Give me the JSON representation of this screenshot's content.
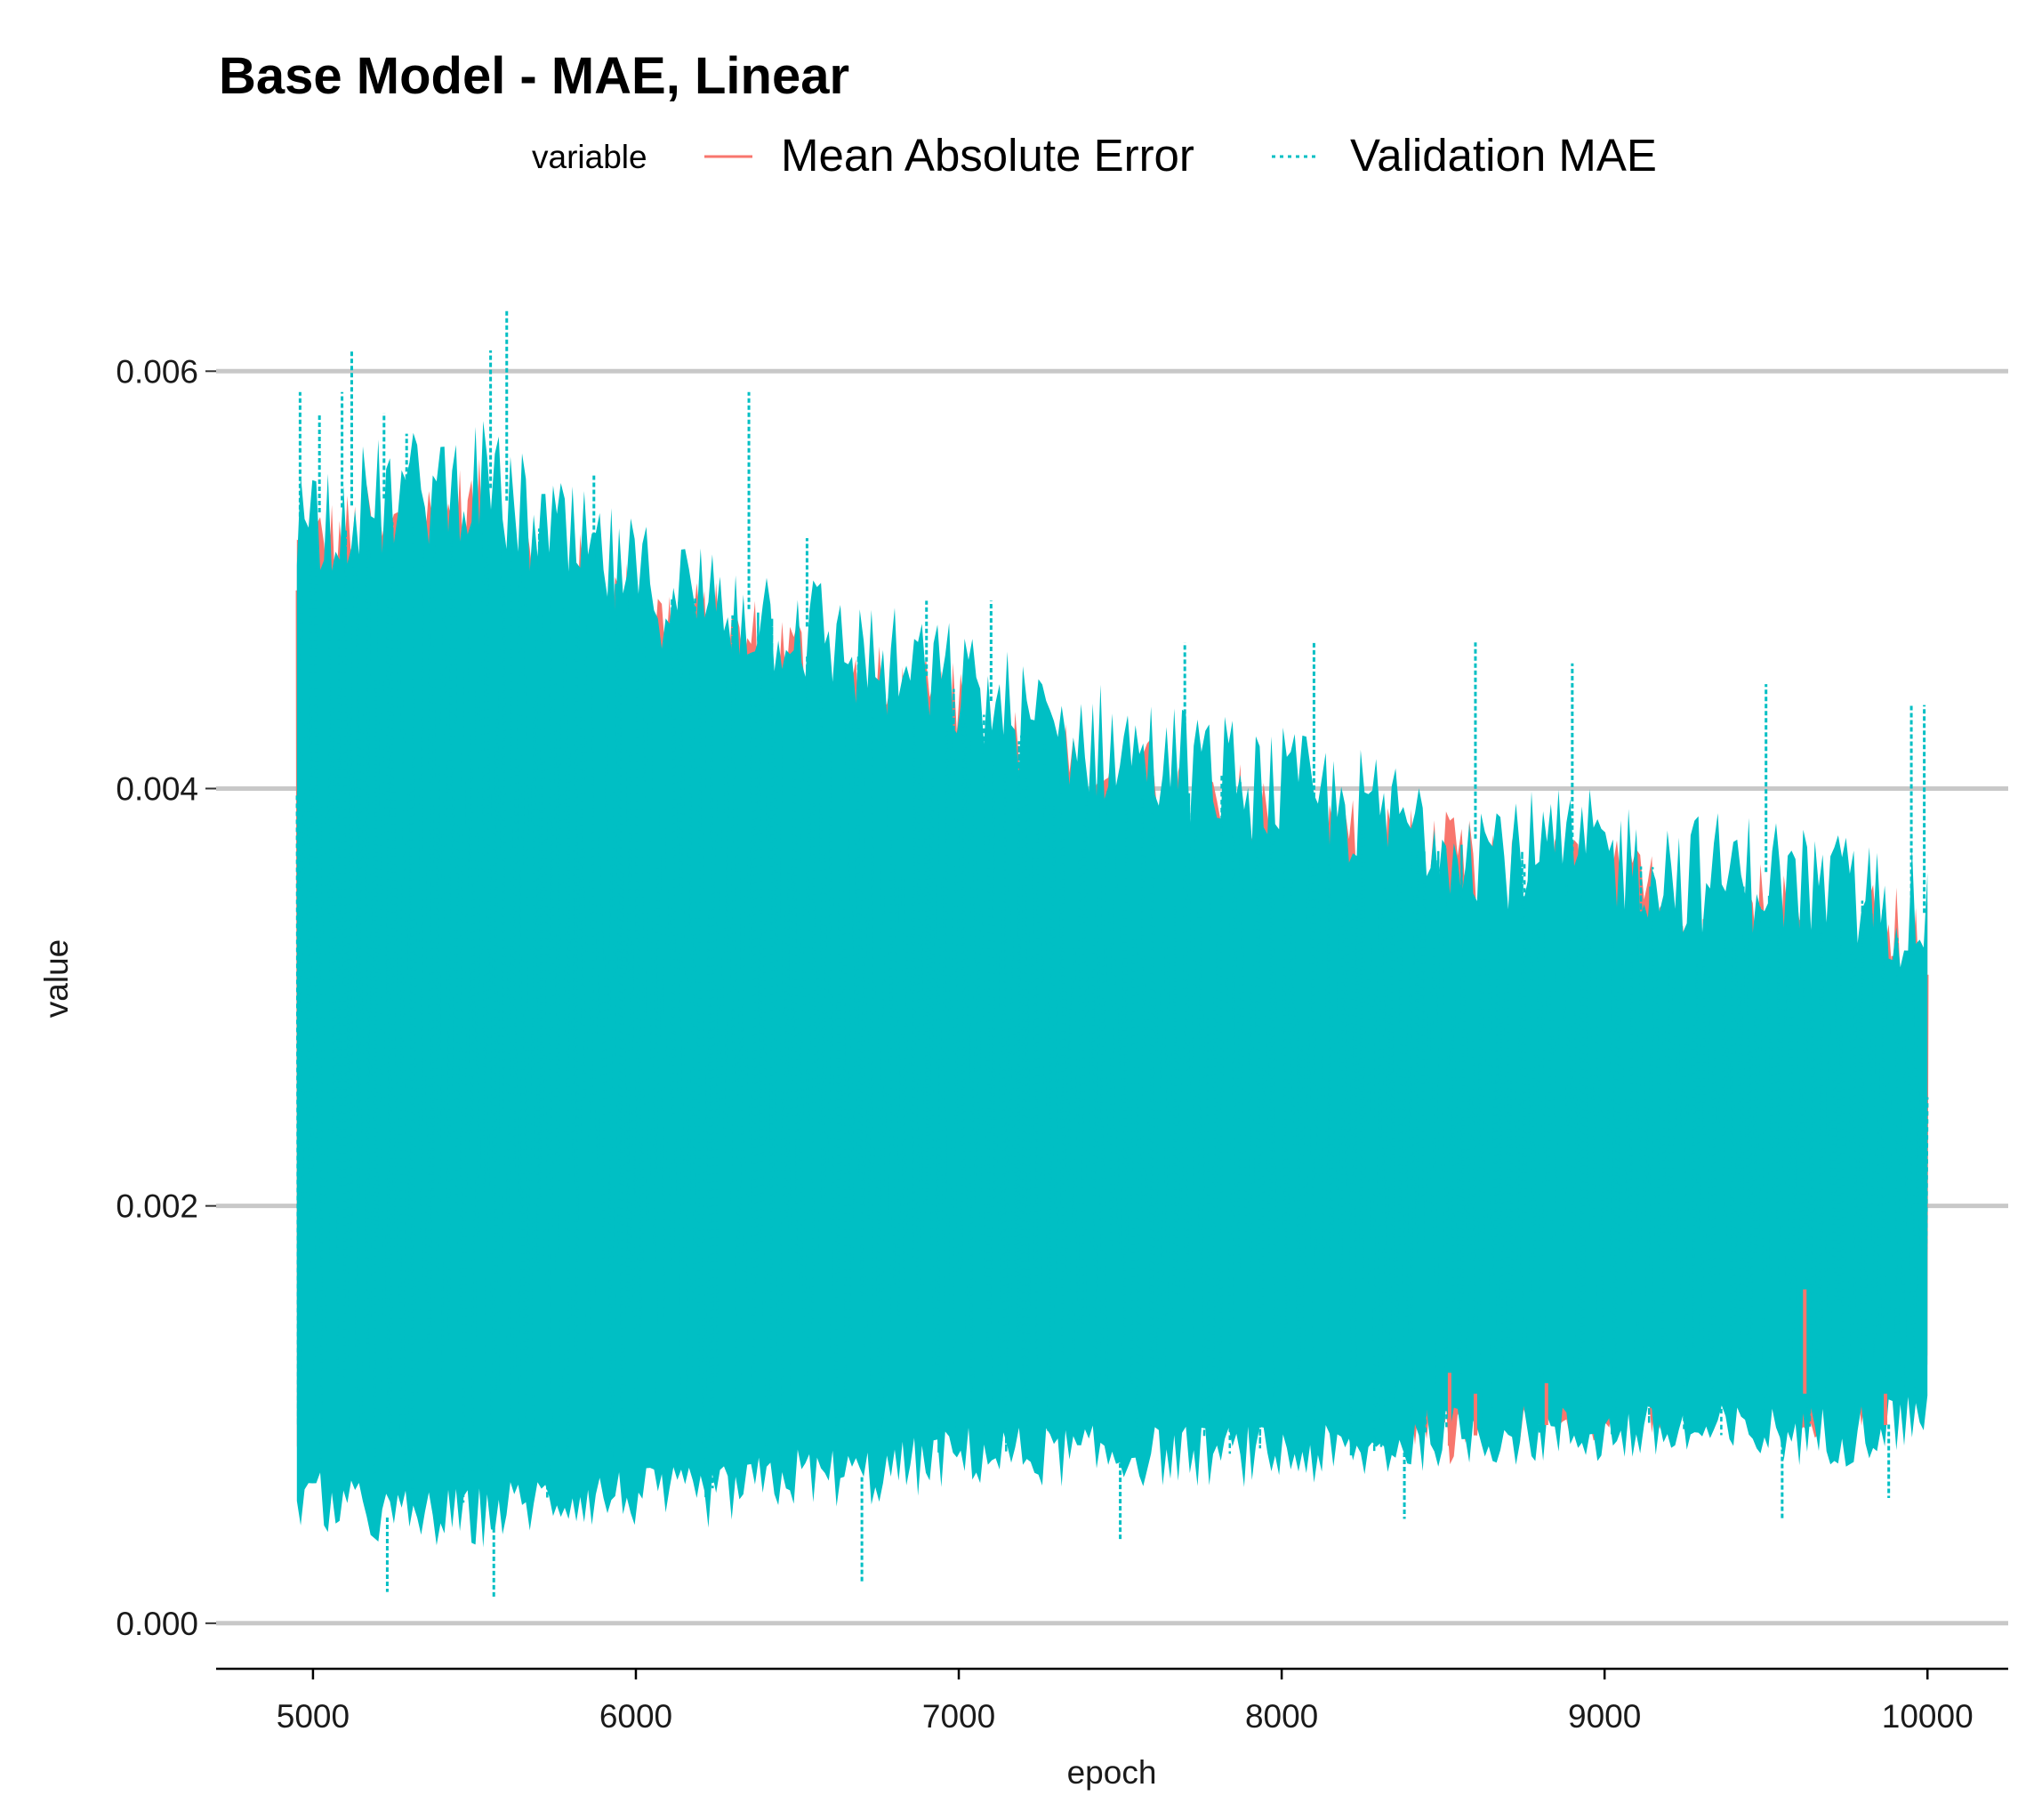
{
  "chart_data": {
    "type": "line",
    "title": "Base Model - MAE, Linear",
    "xlabel": "epoch",
    "ylabel": "value",
    "xlim": [
      4700,
      10250
    ],
    "ylim": [
      -0.00015,
      0.0065
    ],
    "x_ticks": [
      5000,
      6000,
      7000,
      8000,
      9000,
      10000
    ],
    "x_tick_labels": [
      "5000",
      "6000",
      "7000",
      "8000",
      "9000",
      "10000"
    ],
    "y_ticks": [
      0.0,
      0.002,
      0.004,
      0.006
    ],
    "y_tick_labels": [
      "0.000",
      "0.002",
      "0.004",
      "0.006"
    ],
    "grid": "horizontal major",
    "legend": {
      "title": "variable",
      "position": "top",
      "entries": [
        {
          "label": "Mean Absolute Error",
          "linetype": "solid",
          "color": "#F8766D"
        },
        {
          "label": "Validation MAE",
          "linetype": "dashed",
          "color": "#00BFC4"
        }
      ]
    },
    "series": [
      {
        "name": "Mean Absolute Error",
        "color": "#F8766D",
        "linetype": "solid",
        "x": [
          4950,
          5250,
          5500,
          5750,
          6000,
          6250,
          6500,
          6750,
          7000,
          7250,
          7500,
          7750,
          8000,
          8250,
          8500,
          8750,
          9000,
          9250,
          9500,
          9750,
          10000
        ],
        "upper": [
          0.0051,
          0.0052,
          0.0053,
          0.005,
          0.0048,
          0.0047,
          0.0046,
          0.0044,
          0.0043,
          0.0041,
          0.004,
          0.0039,
          0.0038,
          0.0037,
          0.0036,
          0.0035,
          0.0035,
          0.0034,
          0.0034,
          0.0033,
          0.0032
        ],
        "lower": [
          0.0009,
          0.0008,
          0.0008,
          0.0009,
          0.0009,
          0.001,
          0.001,
          0.0011,
          0.0011,
          0.0011,
          0.0012,
          0.0011,
          0.0011,
          0.0011,
          0.0009,
          0.001,
          0.001,
          0.0011,
          0.0011,
          0.001,
          0.0012
        ]
      },
      {
        "name": "Validation MAE",
        "color": "#00BFC4",
        "linetype": "dashed",
        "x": [
          4950,
          5250,
          5500,
          5750,
          6000,
          6250,
          6500,
          6750,
          7000,
          7250,
          7500,
          7750,
          8000,
          8250,
          8500,
          8750,
          9000,
          9250,
          9500,
          9750,
          10000
        ],
        "upper": [
          0.0053,
          0.0054,
          0.0055,
          0.0052,
          0.005,
          0.0049,
          0.0048,
          0.0046,
          0.0045,
          0.0043,
          0.0042,
          0.0041,
          0.004,
          0.0039,
          0.0038,
          0.0037,
          0.0037,
          0.0036,
          0.0036,
          0.0035,
          0.0034
        ],
        "lower": [
          0.0006,
          0.0005,
          0.0005,
          0.0006,
          0.0006,
          0.0006,
          0.0007,
          0.0007,
          0.0008,
          0.0008,
          0.0008,
          0.0008,
          0.0008,
          0.0008,
          0.0009,
          0.0009,
          0.0009,
          0.0009,
          0.0009,
          0.0009,
          0.001
        ],
        "spikes": [
          {
            "x": 4960,
            "y": 0.0059
          },
          {
            "x": 5020,
            "y": 0.0058
          },
          {
            "x": 5090,
            "y": 0.0059
          },
          {
            "x": 5120,
            "y": 0.0061
          },
          {
            "x": 5220,
            "y": 0.0058
          },
          {
            "x": 5290,
            "y": 0.0057
          },
          {
            "x": 5550,
            "y": 0.0061
          },
          {
            "x": 5600,
            "y": 0.0063
          },
          {
            "x": 5870,
            "y": 0.0055
          },
          {
            "x": 6350,
            "y": 0.0059
          },
          {
            "x": 6530,
            "y": 0.0052
          },
          {
            "x": 6900,
            "y": 0.0049
          },
          {
            "x": 7100,
            "y": 0.0049
          },
          {
            "x": 7700,
            "y": 0.0047
          },
          {
            "x": 8100,
            "y": 0.0047
          },
          {
            "x": 8600,
            "y": 0.0047
          },
          {
            "x": 8900,
            "y": 0.0046
          },
          {
            "x": 9500,
            "y": 0.0045
          },
          {
            "x": 9950,
            "y": 0.0044
          },
          {
            "x": 9990,
            "y": 0.0044
          }
        ],
        "dips": [
          {
            "x": 5230,
            "y": 0.00015
          },
          {
            "x": 5560,
            "y": 0.00012
          },
          {
            "x": 6700,
            "y": 0.0002
          },
          {
            "x": 7500,
            "y": 0.0004
          },
          {
            "x": 8380,
            "y": 0.0005
          },
          {
            "x": 9550,
            "y": 0.0005
          },
          {
            "x": 9880,
            "y": 0.0006
          }
        ]
      }
    ]
  }
}
